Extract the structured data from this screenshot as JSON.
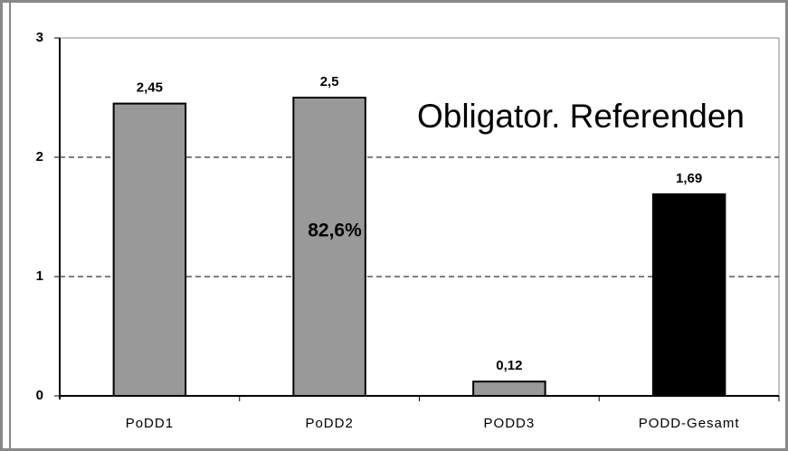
{
  "chart_data": {
    "type": "bar",
    "title": "Obligator. Referenden",
    "annotation": "82,6%",
    "categories": [
      "PoDD1",
      "PoDD2",
      "PODD3",
      "PODD-Gesamt"
    ],
    "values": [
      2.45,
      2.5,
      0.12,
      1.69
    ],
    "value_labels": [
      "2,45",
      "2,5",
      "0,12",
      "1,69"
    ],
    "colors": [
      "#999999",
      "#999999",
      "#999999",
      "#000000"
    ],
    "ylim": [
      0,
      3
    ],
    "yticks": [
      0,
      1,
      2,
      3
    ],
    "grid": true
  }
}
